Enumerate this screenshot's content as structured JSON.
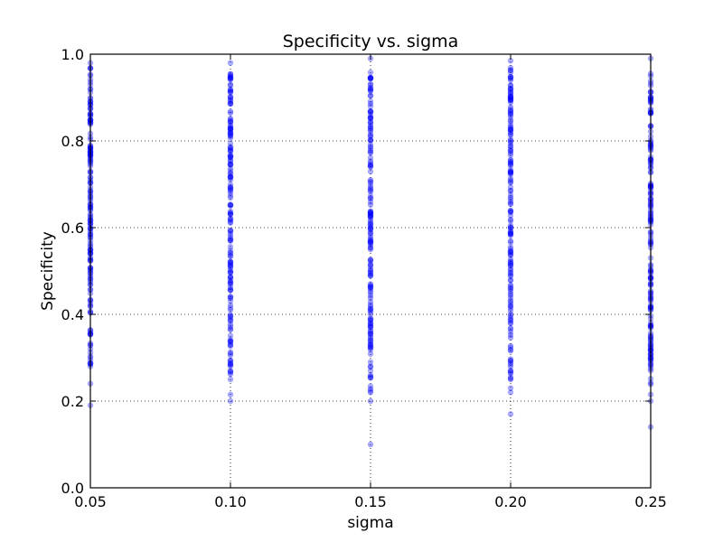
{
  "chart_data": {
    "type": "scatter",
    "title": "Specificity vs. sigma",
    "xlabel": "sigma",
    "ylabel": "Specificity",
    "xlim": [
      0.05,
      0.25
    ],
    "ylim": [
      0.0,
      1.0
    ],
    "xticks": [
      "0.05",
      "0.10",
      "0.15",
      "0.20",
      "0.25"
    ],
    "yticks": [
      "0.0",
      "0.2",
      "0.4",
      "0.6",
      "0.8",
      "1.0"
    ],
    "grid": true,
    "marker_color": "#0000ff",
    "series": [
      {
        "groups": [
          {
            "x": 0.05,
            "y_min": 0.19,
            "dense_min": 0.35,
            "dense_max": 0.97,
            "y_max": 0.98,
            "outliers": [
              0.19,
              0.24,
              0.28,
              0.3,
              0.32
            ]
          },
          {
            "x": 0.1,
            "y_min": 0.2,
            "dense_min": 0.31,
            "dense_max": 0.96,
            "y_max": 0.98,
            "outliers": [
              0.2,
              0.215,
              0.25,
              0.27,
              0.285,
              0.29
            ]
          },
          {
            "x": 0.15,
            "y_min": 0.1,
            "dense_min": 0.32,
            "dense_max": 0.97,
            "y_max": 0.99,
            "outliers": [
              0.1,
              0.2,
              0.22,
              0.26,
              0.27,
              0.29
            ]
          },
          {
            "x": 0.2,
            "y_min": 0.17,
            "dense_min": 0.31,
            "dense_max": 0.97,
            "y_max": 0.985,
            "outliers": [
              0.17,
              0.22,
              0.23,
              0.25,
              0.27,
              0.28
            ]
          },
          {
            "x": 0.25,
            "y_min": 0.14,
            "dense_min": 0.3,
            "dense_max": 0.97,
            "y_max": 0.99,
            "outliers": [
              0.14,
              0.2,
              0.215,
              0.27,
              0.28,
              0.3
            ]
          }
        ]
      }
    ]
  }
}
